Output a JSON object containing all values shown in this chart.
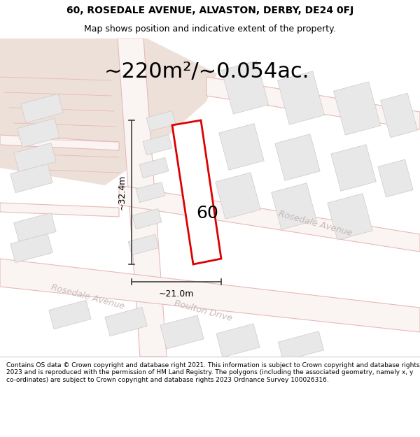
{
  "title_line1": "60, ROSEDALE AVENUE, ALVASTON, DERBY, DE24 0FJ",
  "title_line2": "Map shows position and indicative extent of the property.",
  "area_text": "~220m²/~0.054ac.",
  "label_60": "60",
  "dim_height": "~32.4m",
  "dim_width": "~21.0m",
  "footer_text": "Contains OS data © Crown copyright and database right 2021. This information is subject to Crown copyright and database rights 2023 and is reproduced with the permission of HM Land Registry. The polygons (including the associated geometry, namely x, y co-ordinates) are subject to Crown copyright and database rights 2023 Ordnance Survey 100026316.",
  "bg_color": "#ffffff",
  "map_bg": "#ffffff",
  "plot_color": "#dd0000",
  "road_line_color": "#e8b8b8",
  "building_fill": "#e8e8e8",
  "building_edge": "#d0c8c8",
  "beige_fill": "#ede0d8",
  "street_label_color": "#c8b8b8",
  "street_label1": "Rosedale Avenue",
  "street_label2": "Rosedale Avenue",
  "street_label3": "Boulton Drive",
  "figsize": [
    6.0,
    6.25
  ],
  "dpi": 100,
  "title_fontsize": 10,
  "subtitle_fontsize": 9,
  "area_fontsize": 22,
  "label_fontsize": 18,
  "dim_fontsize": 9,
  "street_fontsize": 9,
  "footer_fontsize": 6.5
}
